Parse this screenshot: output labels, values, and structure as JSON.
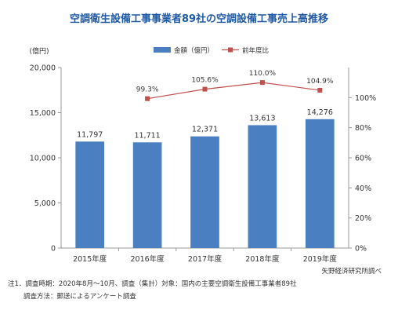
{
  "chart_data": {
    "type": "bar",
    "title": "空調衛生設備工事事業者89社の空調設備工事売上高推移",
    "ylabel": "(億円)",
    "categories": [
      "2015年度",
      "2016年度",
      "2017年度",
      "2018年度",
      "2019年度"
    ],
    "ylim": [
      0,
      20000
    ],
    "yticks": [
      "0",
      "5,000",
      "10,000",
      "15,000",
      "20,000"
    ],
    "y2lim": [
      0,
      1.2
    ],
    "y2ticks": [
      "0%",
      "20%",
      "40%",
      "60%",
      "80%",
      "100%"
    ],
    "series": [
      {
        "name": "金額（億円）",
        "kind": "bar",
        "axis": "left",
        "values": [
          11797,
          11711,
          12371,
          13613,
          14276
        ],
        "labels": [
          "11,797",
          "11,711",
          "12,371",
          "13,613",
          "14,276"
        ],
        "color": "#4a7fc1"
      },
      {
        "name": "前年度比",
        "kind": "line",
        "axis": "right",
        "values": [
          null,
          0.993,
          1.056,
          1.1,
          1.049
        ],
        "labels": [
          "",
          "99.3%",
          "105.6%",
          "110.0%",
          "104.9%"
        ],
        "color": "#c0504d"
      }
    ],
    "grid": false,
    "legend": "top-center"
  },
  "source": "矢野経済研究所調べ",
  "notes": {
    "line1": "注1．調査時期：2020年8月～10月、調査（集計）対象：国内の主要空調衛生設備工事業者89社",
    "line2": "調査方法：郵送によるアンケート調査"
  }
}
